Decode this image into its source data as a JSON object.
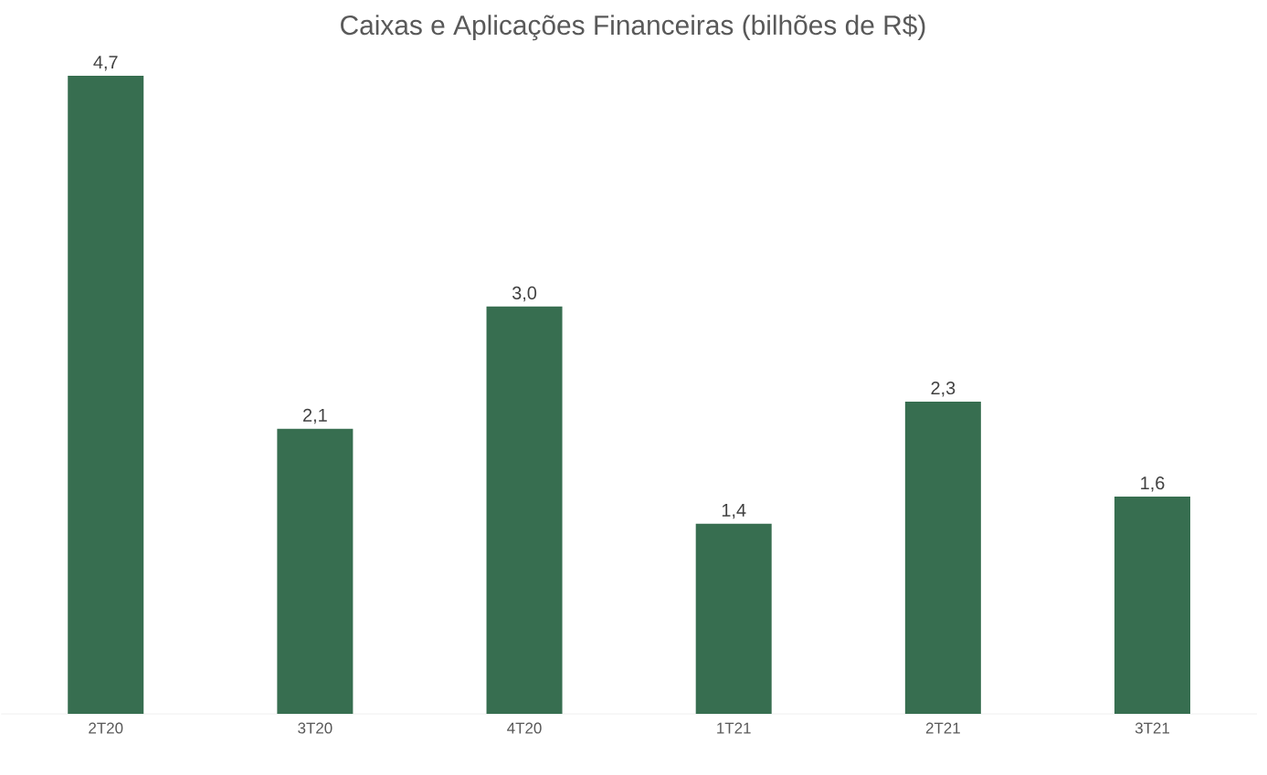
{
  "chart_data": {
    "type": "bar",
    "title": "Caixas e Aplicações Financeiras (bilhões de R$)",
    "categories": [
      "2T20",
      "3T20",
      "4T20",
      "1T21",
      "2T21",
      "3T21"
    ],
    "values": [
      4.7,
      2.1,
      3.0,
      1.4,
      2.3,
      1.6
    ],
    "value_labels": [
      "4,7",
      "2,1",
      "3,0",
      "1,4",
      "2,3",
      "1,6"
    ],
    "color": "#376e50"
  }
}
